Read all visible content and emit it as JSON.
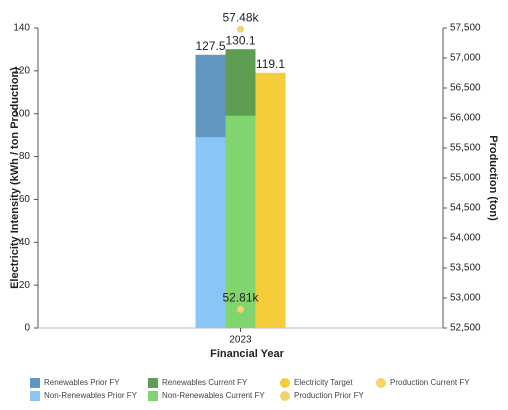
{
  "chart_data": {
    "type": "bar",
    "categories": [
      "2023"
    ],
    "x_label": "Financial Year",
    "y_label": "Electricity Intensity (kWh / ton Production)",
    "y2_label": "Production (ton)",
    "ylim": [
      0,
      140
    ],
    "yticks": [
      0,
      20,
      40,
      60,
      80,
      100,
      120,
      140
    ],
    "y2lim": [
      52500,
      57500
    ],
    "y2ticks": [
      {
        "value": 52500,
        "label": "52,500"
      },
      {
        "value": 53000,
        "label": "53,000"
      },
      {
        "value": 53500,
        "label": "53,500"
      },
      {
        "value": 54000,
        "label": "54,000"
      },
      {
        "value": 54500,
        "label": "54,500"
      },
      {
        "value": 55000,
        "label": "55,000"
      },
      {
        "value": 55500,
        "label": "55,500"
      },
      {
        "value": 56000,
        "label": "56,000"
      },
      {
        "value": 56500,
        "label": "56,500"
      },
      {
        "value": 57000,
        "label": "57,000"
      },
      {
        "value": 57500,
        "label": "57,500"
      }
    ],
    "grid": false,
    "series": [
      {
        "name": "Non-Renewables Prior FY",
        "color": "#88c6f7",
        "group": 0,
        "values": [
          89
        ]
      },
      {
        "name": "Renewables Prior FY",
        "color": "#6096bf",
        "group": 0,
        "values": [
          38.5
        ],
        "total_labels": [
          127.5
        ]
      },
      {
        "name": "Non-Renewables Current FY",
        "color": "#82d46e",
        "group": 1,
        "values": [
          99
        ]
      },
      {
        "name": "Renewables Current FY",
        "color": "#5d9e52",
        "group": 1,
        "values": [
          31.1
        ],
        "total_labels": [
          130.1
        ]
      },
      {
        "name": "Electricity Target",
        "color": "#f5cd3a",
        "group": 2,
        "values": [
          119.1
        ],
        "legend_symbol": "circle",
        "show_labels": true
      },
      {
        "name": "Production Prior FY",
        "color": "#f2d46a",
        "axis": "y2",
        "marker": "point",
        "values": [
          52810
        ],
        "value_labels": [
          "52.81k"
        ]
      },
      {
        "name": "Production Current FY",
        "color": "#f2d46a",
        "axis": "y2",
        "marker": "point",
        "values": [
          57480
        ],
        "value_labels": [
          "57.48k"
        ]
      }
    ]
  }
}
